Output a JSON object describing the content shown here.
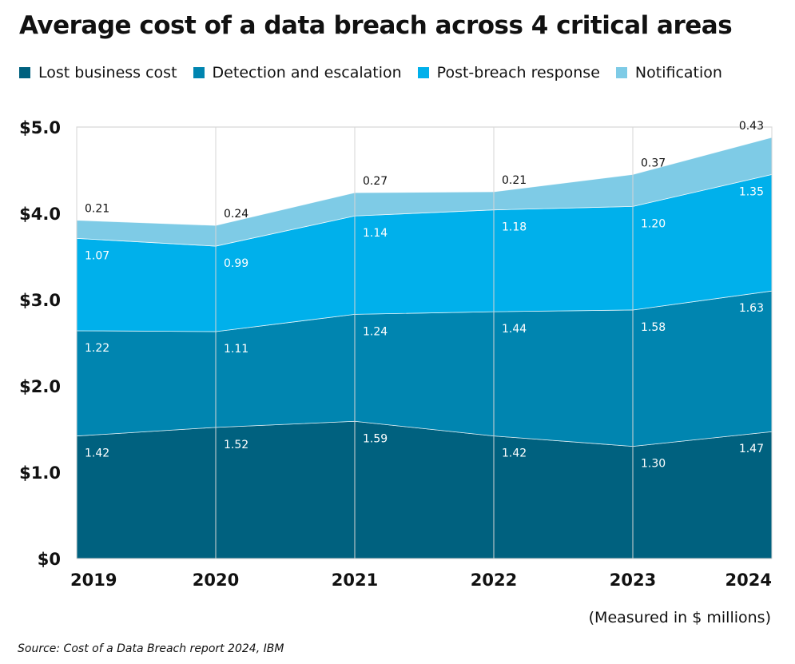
{
  "title": "Average cost of a data breach across 4 critical areas",
  "caption": "(Measured in $ millions)",
  "source": "Source: Cost of a Data Breach report 2024, IBM",
  "chart_data": {
    "type": "area",
    "stacked": true,
    "title": "Average cost of a data breach across 4 critical areas",
    "categories": [
      "2019",
      "2020",
      "2021",
      "2022",
      "2023",
      "2024"
    ],
    "y_ticks": [
      "$0",
      "$1.0",
      "$2.0",
      "$3.0",
      "$4.0",
      "$5.0"
    ],
    "ylim": [
      0,
      5
    ],
    "legend_position": "top",
    "grid": "vertical",
    "series": [
      {
        "name": "Lost business cost",
        "color": "#00617f",
        "label_color": "#ffffff",
        "values": [
          1.42,
          1.52,
          1.59,
          1.42,
          1.3,
          1.47
        ],
        "labels": [
          "1.42",
          "1.52",
          "1.59",
          "1.42",
          "1.30",
          "1.47"
        ]
      },
      {
        "name": "Detection and escalation",
        "color": "#0085b0",
        "label_color": "#ffffff",
        "values": [
          1.22,
          1.11,
          1.24,
          1.44,
          1.58,
          1.63
        ],
        "labels": [
          "1.22",
          "1.11",
          "1.24",
          "1.44",
          "1.58",
          "1.63"
        ]
      },
      {
        "name": "Post-breach response",
        "color": "#00b0eb",
        "label_color": "#ffffff",
        "values": [
          1.07,
          0.99,
          1.14,
          1.18,
          1.2,
          1.35
        ],
        "labels": [
          "1.07",
          "0.99",
          "1.14",
          "1.18",
          "1.20",
          "1.35"
        ]
      },
      {
        "name": "Notification",
        "color": "#7ecbe6",
        "label_color": "#111111",
        "values": [
          0.21,
          0.24,
          0.27,
          0.21,
          0.37,
          0.43
        ],
        "labels": [
          "0.21",
          "0.24",
          "0.27",
          "0.21",
          "0.37",
          "0.43"
        ]
      }
    ]
  }
}
